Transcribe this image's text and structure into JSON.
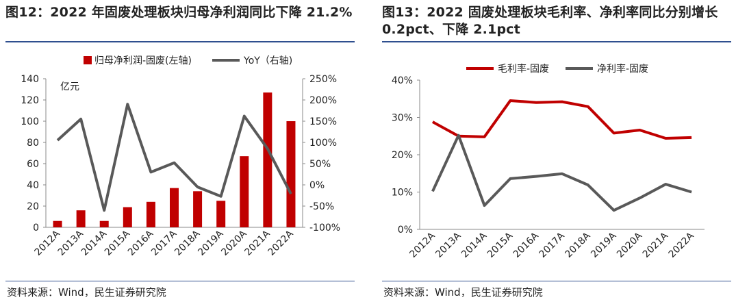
{
  "left": {
    "title": "图12：2022 年固废处理板块归母净利润同比下降 21.2%",
    "source": "资料来源：Wind，民生证券研究院",
    "chart_data": {
      "type": "bar",
      "categories": [
        "2012A",
        "2013A",
        "2014A",
        "2015A",
        "2016A",
        "2017A",
        "2018A",
        "2019A",
        "2020A",
        "2021A",
        "2022A"
      ],
      "series": [
        {
          "name": "归母净利润-固废(左轴)",
          "type": "bar",
          "axis": "left",
          "color": "#c00000",
          "values": [
            6,
            16,
            6,
            19,
            24,
            37,
            34,
            25,
            67,
            127,
            100
          ]
        },
        {
          "name": "YoY（右轴)",
          "type": "line",
          "axis": "right",
          "color": "#595959",
          "values": [
            105,
            155,
            -60,
            190,
            30,
            52,
            -5,
            -27,
            162,
            85,
            -21.2
          ]
        }
      ],
      "unit_label": "亿元",
      "yleft": {
        "min": 0,
        "max": 140,
        "ticks": [
          0,
          20,
          40,
          60,
          80,
          100,
          120,
          140
        ],
        "labels": [
          "0",
          "20",
          "40",
          "60",
          "80",
          "100",
          "120",
          "140"
        ]
      },
      "yright": {
        "min": -100,
        "max": 250,
        "ticks": [
          -100,
          -50,
          0,
          50,
          100,
          150,
          200,
          250
        ],
        "labels": [
          "-100%",
          "-50%",
          "0%",
          "50%",
          "100%",
          "150%",
          "200%",
          "250%"
        ]
      },
      "legend_labels": [
        "归母净利润-固废(左轴)",
        "YoY（右轴)"
      ]
    }
  },
  "right": {
    "title": "图13：2022 固废处理板块毛利率、净利率同比分别增长 0.2pct、下降 2.1pct",
    "source": "资料来源：Wind，民生证券研究院",
    "chart_data": {
      "type": "line",
      "categories": [
        "2012A",
        "2013A",
        "2014A",
        "2015A",
        "2016A",
        "2017A",
        "2018A",
        "2019A",
        "2020A",
        "2021A",
        "2022A"
      ],
      "series": [
        {
          "name": "毛利率-固废",
          "color": "#c00000",
          "values": [
            28.8,
            25.0,
            24.8,
            34.5,
            34.0,
            34.2,
            32.9,
            25.8,
            26.6,
            24.4,
            24.6
          ]
        },
        {
          "name": "净利率-固废",
          "color": "#595959",
          "values": [
            10.2,
            25.2,
            6.4,
            13.6,
            14.2,
            14.9,
            11.9,
            5.1,
            8.4,
            12.1,
            10.0
          ]
        }
      ],
      "y": {
        "min": 0,
        "max": 40,
        "ticks": [
          0,
          10,
          20,
          30,
          40
        ],
        "labels": [
          "0%",
          "10%",
          "20%",
          "30%",
          "40%"
        ]
      },
      "legend_labels": [
        "毛利率-固废",
        "净利率-固废"
      ]
    }
  }
}
